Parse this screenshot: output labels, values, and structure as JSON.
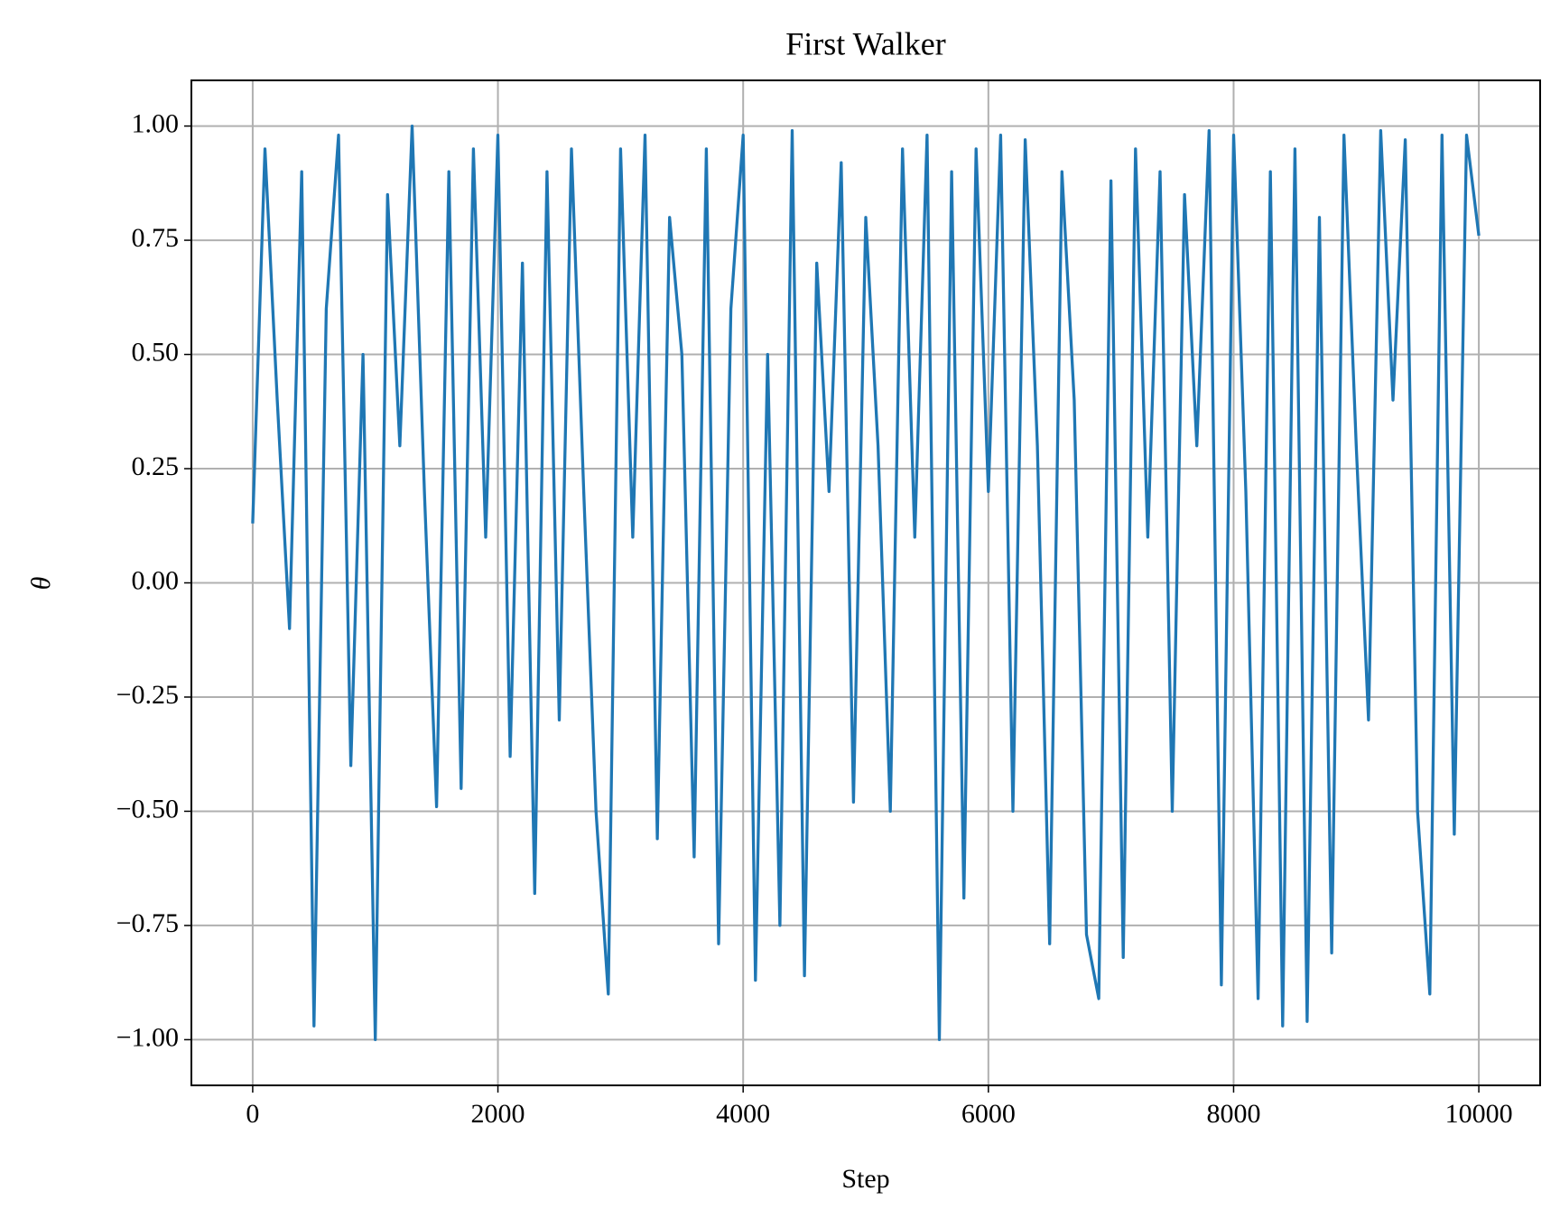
{
  "chart_data": {
    "type": "line",
    "title": "First Walker",
    "xlabel": "Step",
    "ylabel": "θ",
    "x": [
      0,
      100,
      200,
      300,
      400,
      500,
      600,
      700,
      800,
      900,
      1000,
      1100,
      1200,
      1300,
      1400,
      1500,
      1600,
      1700,
      1800,
      1900,
      2000,
      2100,
      2200,
      2300,
      2400,
      2500,
      2600,
      2700,
      2800,
      2900,
      3000,
      3100,
      3200,
      3300,
      3400,
      3500,
      3600,
      3700,
      3800,
      3900,
      4000,
      4100,
      4200,
      4300,
      4400,
      4500,
      4600,
      4700,
      4800,
      4900,
      5000,
      5100,
      5200,
      5300,
      5400,
      5500,
      5600,
      5700,
      5800,
      5900,
      6000,
      6100,
      6200,
      6300,
      6400,
      6500,
      6600,
      6700,
      6800,
      6900,
      7000,
      7100,
      7200,
      7300,
      7400,
      7500,
      7600,
      7700,
      7800,
      7900,
      8000,
      8100,
      8200,
      8300,
      8400,
      8500,
      8600,
      8700,
      8800,
      8900,
      9000,
      9100,
      9200,
      9300,
      9400,
      9500,
      9600,
      9700,
      9800,
      9900,
      10000
    ],
    "series": [
      {
        "name": "First Walker",
        "color": "#1f77b4",
        "values": [
          0.13,
          0.95,
          0.4,
          -0.1,
          0.9,
          -0.97,
          0.6,
          0.98,
          -0.4,
          0.5,
          -1.0,
          0.85,
          0.3,
          1.0,
          0.2,
          -0.49,
          0.9,
          -0.45,
          0.95,
          0.1,
          0.98,
          -0.38,
          0.7,
          -0.68,
          0.9,
          -0.3,
          0.95,
          0.2,
          -0.5,
          -0.9,
          0.95,
          0.1,
          0.98,
          -0.56,
          0.8,
          0.5,
          -0.6,
          0.95,
          -0.79,
          0.6,
          0.98,
          -0.87,
          0.5,
          -0.75,
          0.99,
          -0.86,
          0.7,
          0.2,
          0.92,
          -0.48,
          0.8,
          0.3,
          -0.5,
          0.95,
          0.1,
          0.98,
          -1.0,
          0.9,
          -0.69,
          0.95,
          0.2,
          0.98,
          -0.5,
          0.97,
          0.3,
          -0.79,
          0.9,
          0.4,
          -0.77,
          -0.91,
          0.88,
          -0.82,
          0.95,
          0.1,
          0.9,
          -0.5,
          0.85,
          0.3,
          0.99,
          -0.88,
          0.98,
          0.2,
          -0.91,
          0.9,
          -0.97,
          0.95,
          -0.96,
          0.8,
          -0.81,
          0.98,
          0.3,
          -0.3,
          0.99,
          0.4,
          0.97,
          -0.5,
          -0.9,
          0.98,
          -0.55,
          0.98,
          0.76
        ]
      }
    ],
    "xlim": [
      -500,
      10500
    ],
    "ylim": [
      -1.1,
      1.1
    ],
    "xticks": [
      0,
      2000,
      4000,
      6000,
      8000,
      10000
    ],
    "yticks": [
      {
        "value": -1,
        "label": "−1.00"
      },
      {
        "value": -0.75,
        "label": "−0.75"
      },
      {
        "value": -0.5,
        "label": "−0.50"
      },
      {
        "value": -0.25,
        "label": "−0.25"
      },
      {
        "value": 0,
        "label": "0.00"
      },
      {
        "value": 0.25,
        "label": "0.25"
      },
      {
        "value": 0.5,
        "label": "0.50"
      },
      {
        "value": 0.75,
        "label": "0.75"
      },
      {
        "value": 1,
        "label": "1.00"
      }
    ],
    "grid": true
  }
}
